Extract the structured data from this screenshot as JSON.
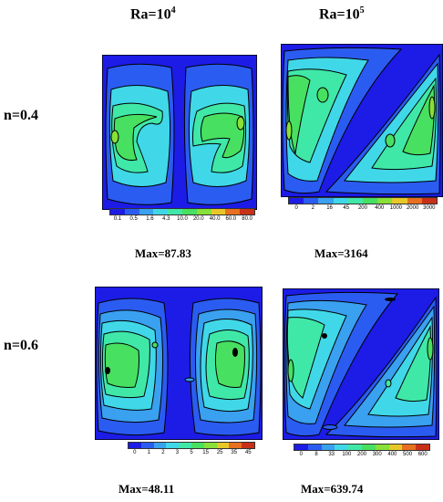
{
  "columns": [
    {
      "prefix": "Ra=10",
      "exp": "4"
    },
    {
      "prefix": "Ra=10",
      "exp": "5"
    }
  ],
  "rows": [
    "n=0.4",
    "n=0.6"
  ],
  "panels": [
    {
      "max": "Max=87.83",
      "ticks": [
        "0.1",
        "0.5",
        "1.6",
        "4.3",
        "10.0",
        "20.0",
        "40.0",
        "60.0",
        "80.0"
      ]
    },
    {
      "max": "Max=3164",
      "ticks": [
        "0",
        "2",
        "16",
        "45",
        "200",
        "400",
        "1000",
        "2000",
        "3000"
      ]
    },
    {
      "max": "Max=48.11",
      "ticks": [
        "0",
        "1",
        "2",
        "3",
        "5",
        "15",
        "25",
        "35",
        "45"
      ]
    },
    {
      "max": "Max=639.74",
      "ticks": [
        "0",
        "8",
        "33",
        "100",
        "200",
        "300",
        "400",
        "500",
        "600"
      ]
    }
  ],
  "colors": {
    "scale": [
      "#1c1ce6",
      "#2b5cf2",
      "#3aa0f0",
      "#40d8e8",
      "#40e8a8",
      "#48e060",
      "#88e038",
      "#e8c828",
      "#e87020",
      "#c83018"
    ]
  }
}
